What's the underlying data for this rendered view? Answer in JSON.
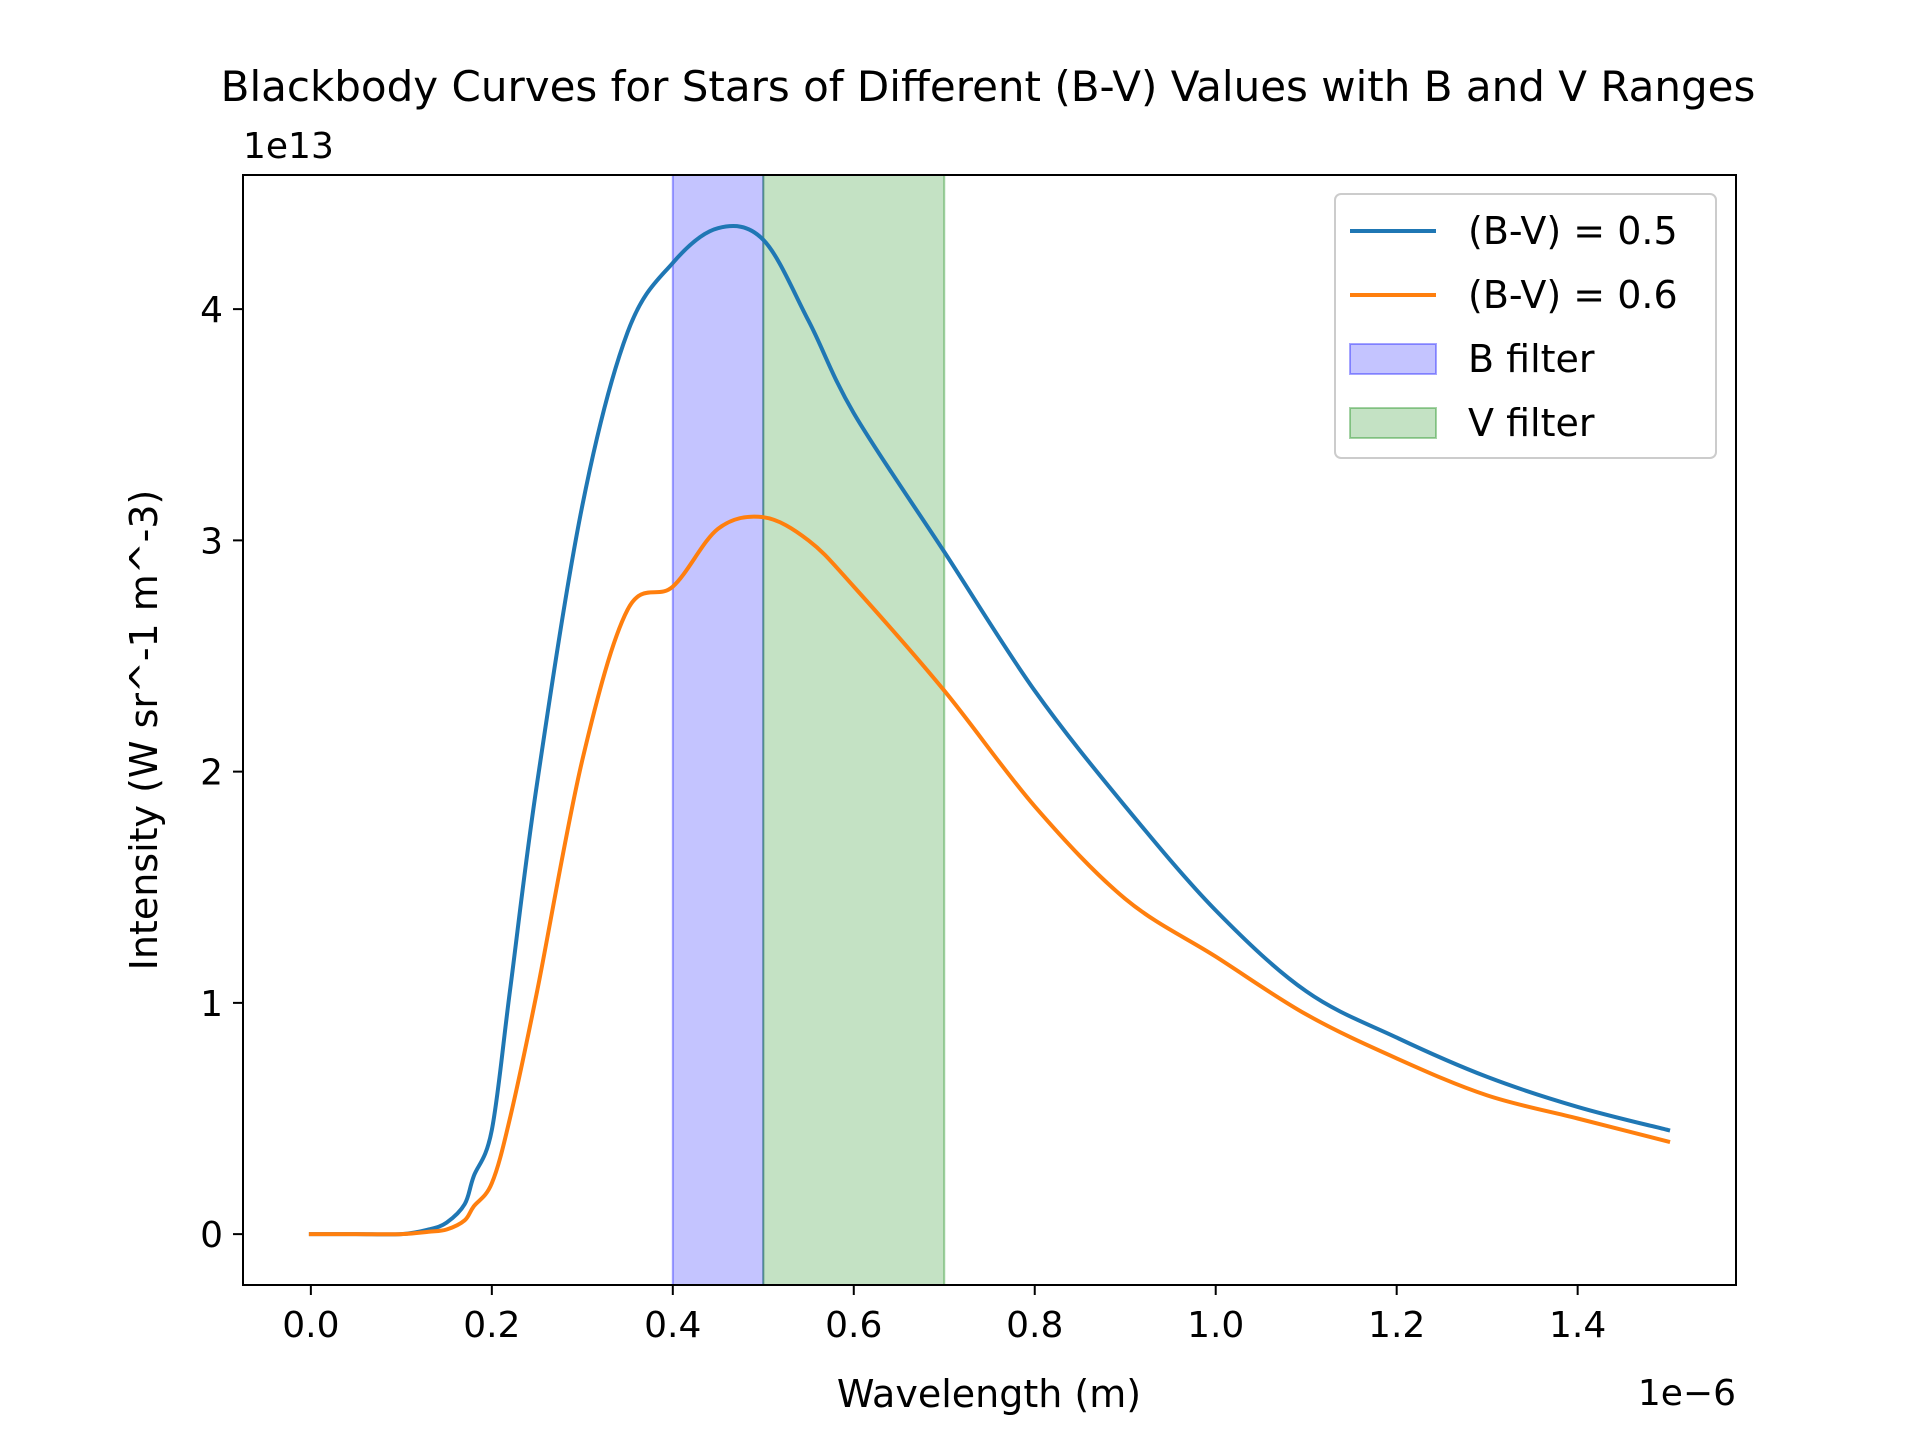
{
  "chart_data": {
    "type": "line",
    "title": "Blackbody Curves for Stars of Different (B-V) Values with B and V Ranges",
    "xlabel": "Wavelength (m)",
    "ylabel": "Intensity (W sr^-1 m^-3)",
    "x_offset_label": "1e−6",
    "y_offset_label": "1e13",
    "xlim": [
      -0.075,
      1.575
    ],
    "ylim": [
      -0.22,
      4.58
    ],
    "x_ticks": [
      0.0,
      0.2,
      0.4,
      0.6,
      0.8,
      1.0,
      1.2,
      1.4
    ],
    "x_tick_labels": [
      "0.0",
      "0.2",
      "0.4",
      "0.6",
      "0.8",
      "1.0",
      "1.2",
      "1.4"
    ],
    "y_ticks": [
      0,
      1,
      2,
      3,
      4
    ],
    "y_tick_labels": [
      "0",
      "1",
      "2",
      "3",
      "4"
    ],
    "grid": false,
    "legend_position": "top-right",
    "bands": [
      {
        "name": "B filter",
        "x_start": 0.4,
        "x_end": 0.5,
        "color": "#0000ff",
        "opacity": 0.23
      },
      {
        "name": "V filter",
        "x_start": 0.5,
        "x_end": 0.7,
        "color": "#008000",
        "opacity": 0.23
      }
    ],
    "series": [
      {
        "name": "(B-V) = 0.5",
        "color": "#1f77b4",
        "x": [
          0.0,
          0.05,
          0.1,
          0.13,
          0.15,
          0.17,
          0.18,
          0.2,
          0.22,
          0.25,
          0.3,
          0.35,
          0.4,
          0.45,
          0.5,
          0.55,
          0.6,
          0.7,
          0.8,
          0.9,
          1.0,
          1.1,
          1.2,
          1.3,
          1.4,
          1.5
        ],
        "y": [
          0.0,
          0.0,
          0.0,
          0.02,
          0.05,
          0.13,
          0.25,
          0.45,
          1.05,
          1.95,
          3.15,
          3.9,
          4.2,
          4.35,
          4.3,
          3.95,
          3.55,
          2.95,
          2.35,
          1.85,
          1.4,
          1.05,
          0.85,
          0.68,
          0.55,
          0.45
        ]
      },
      {
        "name": "(B-V) = 0.6",
        "color": "#ff7f0e",
        "x": [
          0.0,
          0.05,
          0.1,
          0.13,
          0.15,
          0.17,
          0.18,
          0.2,
          0.22,
          0.25,
          0.3,
          0.35,
          0.4,
          0.45,
          0.5,
          0.55,
          0.6,
          0.7,
          0.8,
          0.9,
          1.0,
          1.1,
          1.2,
          1.3,
          1.4,
          1.5
        ],
        "y": [
          0.0,
          0.0,
          0.0,
          0.01,
          0.02,
          0.06,
          0.12,
          0.22,
          0.5,
          1.05,
          2.05,
          2.7,
          2.8,
          3.05,
          3.1,
          3.0,
          2.8,
          2.35,
          1.85,
          1.45,
          1.2,
          0.95,
          0.76,
          0.6,
          0.5,
          0.4
        ]
      }
    ]
  }
}
